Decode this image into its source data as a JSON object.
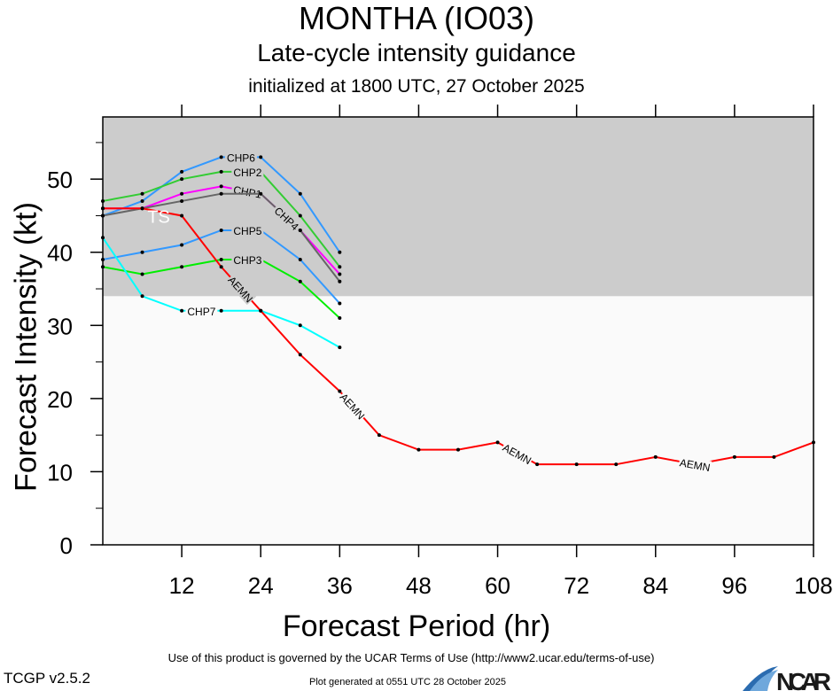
{
  "chart_data": {
    "type": "line",
    "title": "MONTHA (IO03)",
    "subtitle": "Late-cycle intensity guidance",
    "initialized": "initialized at 1800 UTC, 27 October 2025",
    "xlabel": "Forecast Period (hr)",
    "ylabel": "Forecast Intensity (kt)",
    "xlim": [
      0,
      108
    ],
    "ylim": [
      0,
      58.5
    ],
    "xticks": [
      12,
      24,
      36,
      48,
      60,
      72,
      84,
      96,
      108
    ],
    "yticks": [
      0,
      10,
      20,
      30,
      40,
      50
    ],
    "grid": false,
    "legend": "none (inline labels)",
    "shaded_regions": [
      {
        "label": "TS",
        "from": 34,
        "to": 58.5,
        "color": "#cccccc"
      }
    ],
    "background_color": "#fafafa",
    "series": [
      {
        "name": "CHP6",
        "color": "#3399ff",
        "x": [
          0,
          6,
          12,
          18,
          24,
          30,
          36
        ],
        "values": [
          45,
          47,
          51,
          53,
          53,
          48,
          40
        ],
        "label_at": 21
      },
      {
        "name": "CHP2",
        "color": "#33cc33",
        "x": [
          0,
          6,
          12,
          18,
          24,
          30,
          36
        ],
        "values": [
          47,
          48,
          50,
          51,
          51,
          45,
          38
        ],
        "label_at": 22
      },
      {
        "name": "CHP1",
        "color": "#ff00ff",
        "x": [
          0,
          6,
          12,
          18,
          24,
          30,
          36
        ],
        "values": [
          46,
          46,
          48,
          49,
          48,
          43,
          37
        ],
        "label_at": 22
      },
      {
        "name": "CHP4",
        "color": "#666666",
        "x": [
          0,
          6,
          12,
          18,
          24,
          30,
          36
        ],
        "values": [
          45,
          46,
          47,
          48,
          48,
          43,
          36
        ],
        "label_at": 22
      },
      {
        "name": "CHP5",
        "color": "#3399ff",
        "x": [
          0,
          6,
          12,
          18,
          24,
          30,
          36
        ],
        "values": [
          39,
          40,
          41,
          43,
          43,
          39,
          33
        ],
        "label_at": 22
      },
      {
        "name": "CHP3",
        "color": "#00ee00",
        "x": [
          0,
          6,
          12,
          18,
          24,
          30,
          36
        ],
        "values": [
          38,
          37,
          38,
          39,
          39,
          36,
          31
        ],
        "label_at": 22
      },
      {
        "name": "CHP7",
        "color": "#00ffff",
        "x": [
          0,
          6,
          12,
          18,
          24,
          30,
          36
        ],
        "values": [
          42,
          34,
          32,
          32,
          32,
          30,
          27
        ],
        "label_at": 15
      },
      {
        "name": "AEMN",
        "color": "#ff0000",
        "x": [
          0,
          6,
          12,
          18,
          24,
          30,
          36,
          42,
          48,
          54,
          60,
          66,
          72,
          78,
          84,
          90,
          96,
          102,
          108
        ],
        "values": [
          46,
          46,
          45,
          38,
          32,
          26,
          21,
          15,
          13,
          13,
          14,
          11,
          11,
          11,
          12,
          11,
          12,
          12,
          14
        ],
        "label_at": [
          21,
          38,
          63,
          90
        ]
      }
    ]
  },
  "footer": {
    "terms": "Use of this product is governed by the UCAR Terms of Use (http://www2.ucar.edu/terms-of-use)",
    "generated": "Plot generated at 0551 UTC   28 October 2025",
    "version": "TCGP v2.5.2",
    "logo": "NCAR"
  }
}
